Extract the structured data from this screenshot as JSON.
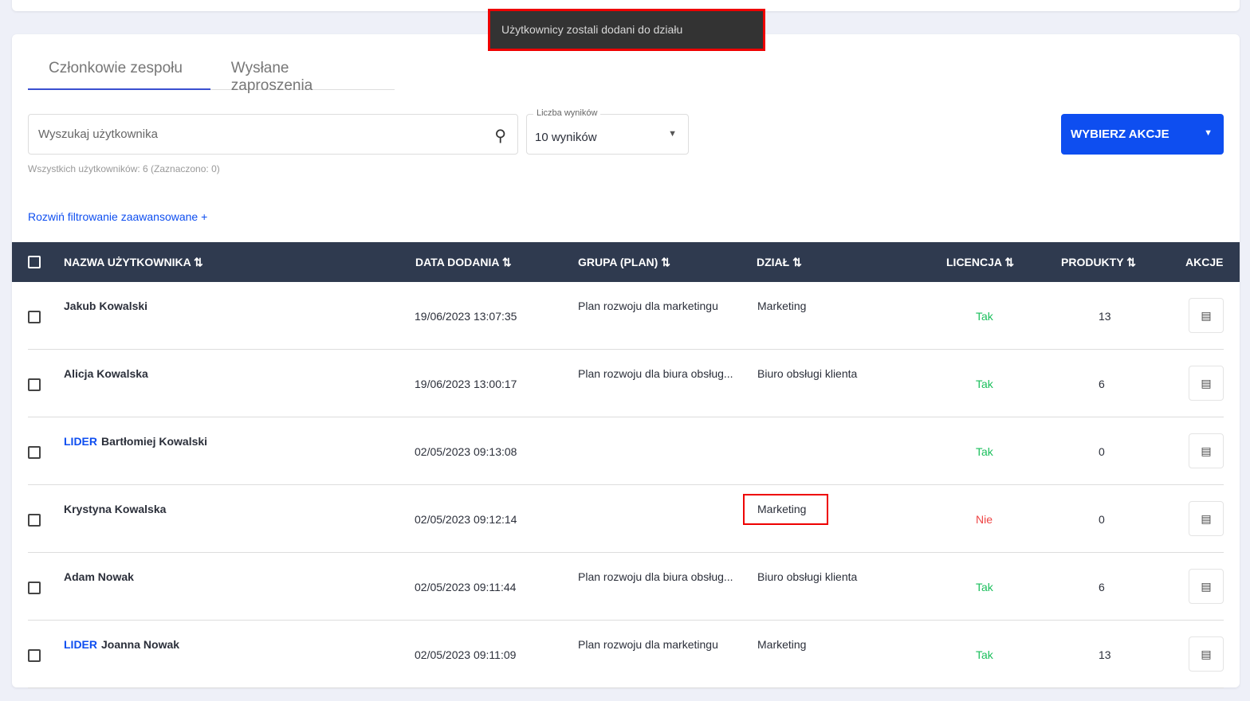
{
  "toast": "Użytkownicy zostali dodani do działu",
  "tabs": [
    "Członkowie zespołu",
    "Wysłane zaproszenia"
  ],
  "search": {
    "placeholder": "Wyszukaj użytkownika"
  },
  "results": {
    "label": "Liczba wyników",
    "value": "10 wyników"
  },
  "action_button": "WYBIERZ AKCJE",
  "count": "Wszystkich użytkowników: 6 (Zaznaczono: 0)",
  "advanced": "Rozwiń filtrowanie zaawansowane +",
  "headers": {
    "name": "NAZWA UŻYTKOWNIKA ⇅",
    "date": "DATA DODANIA ⇅",
    "group": "GRUPA (PLAN) ⇅",
    "dept": "DZIAŁ ⇅",
    "license": "LICENCJA ⇅",
    "products": "PRODUKTY ⇅",
    "actions": "AKCJE"
  },
  "rows": [
    {
      "lider": "",
      "name": "Jakub Kowalski",
      "date": "19/06/2023 13:07:35",
      "plan": "Plan rozwoju dla marketingu",
      "dept": "Marketing",
      "license": "Tak",
      "products": "13"
    },
    {
      "lider": "",
      "name": "Alicja Kowalska",
      "date": "19/06/2023 13:00:17",
      "plan": "Plan rozwoju dla biura obsług...",
      "dept": "Biuro obsługi klienta",
      "license": "Tak",
      "products": "6"
    },
    {
      "lider": "LIDER",
      "name": "Bartłomiej Kowalski",
      "date": "02/05/2023 09:13:08",
      "plan": "",
      "dept": "",
      "license": "Tak",
      "products": "0"
    },
    {
      "lider": "",
      "name": "Krystyna Kowalska",
      "date": "02/05/2023 09:12:14",
      "plan": "",
      "dept": "Marketing",
      "license": "Nie",
      "products": "0"
    },
    {
      "lider": "",
      "name": "Adam Nowak",
      "date": "02/05/2023 09:11:44",
      "plan": "Plan rozwoju dla biura obsług...",
      "dept": "Biuro obsługi klienta",
      "license": "Tak",
      "products": "6"
    },
    {
      "lider": "LIDER",
      "name": "Joanna Nowak",
      "date": "02/05/2023 09:11:09",
      "plan": "Plan rozwoju dla marketingu",
      "dept": "Marketing",
      "license": "Tak",
      "products": "13"
    }
  ]
}
